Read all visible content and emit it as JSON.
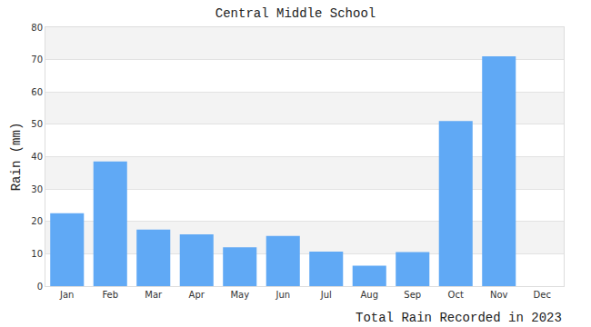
{
  "chart_data": {
    "type": "bar",
    "title": "Central Middle School",
    "ylabel": "Rain (mm)",
    "xlabel": "Total Rain Recorded in 2023",
    "categories": [
      "Jan",
      "Feb",
      "Mar",
      "Apr",
      "May",
      "Jun",
      "Jul",
      "Aug",
      "Sep",
      "Oct",
      "Nov",
      "Dec"
    ],
    "values": [
      22.5,
      38.5,
      17.5,
      16,
      12,
      15.5,
      10.7,
      6.3,
      10.5,
      51,
      71,
      null
    ],
    "color": "#60a9f5",
    "ylim": [
      0,
      80
    ],
    "yticks": [
      0,
      10,
      20,
      30,
      40,
      50,
      60,
      70,
      80
    ],
    "grid": true
  }
}
